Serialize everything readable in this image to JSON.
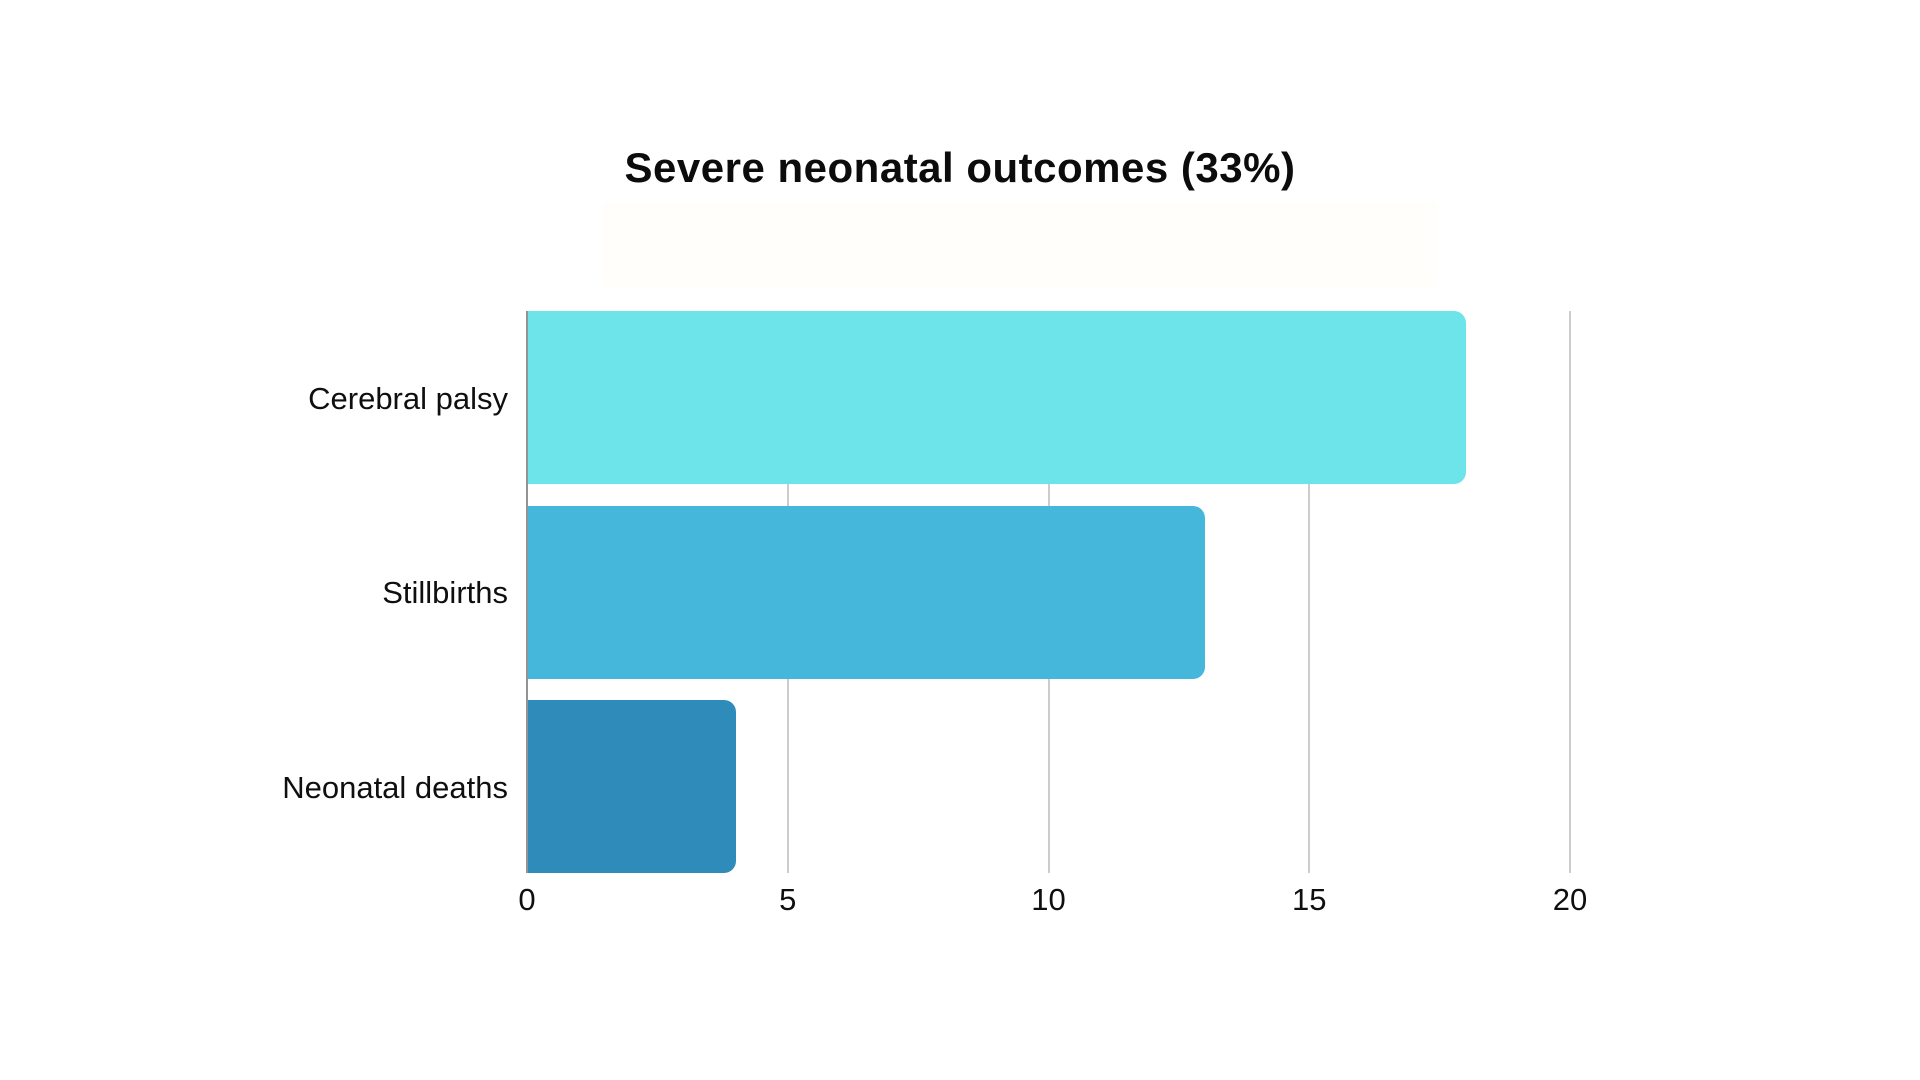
{
  "page": {
    "background": "#ffffff"
  },
  "chart_data": {
    "type": "bar",
    "orientation": "horizontal",
    "title": "Severe neonatal outcomes (33%)",
    "categories": [
      "Cerebral palsy",
      "Stillbirths",
      "Neonatal deaths"
    ],
    "values": [
      18,
      13,
      4
    ],
    "bar_colors": [
      "#6CE4E9",
      "#45B7DA",
      "#2F8CBA"
    ],
    "xlabel": "",
    "ylabel": "",
    "xlim": [
      0,
      20
    ],
    "xticks": [
      0,
      5,
      10,
      15,
      20
    ],
    "grid": true,
    "gridline_color": "#cccccc",
    "zero_line_color": "#919396",
    "title_color": "#0c0c0c",
    "text_color": "#0f0f0f",
    "legend_position": "none",
    "data_labels": false
  }
}
